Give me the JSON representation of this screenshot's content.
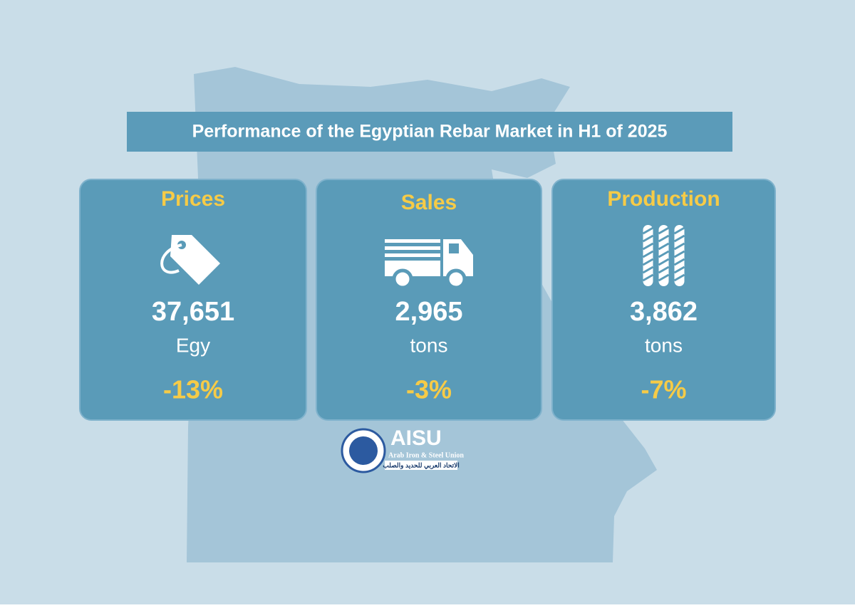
{
  "header": {
    "title": "Performance of the Egyptian Rebar Market in H1 of 2025"
  },
  "cards": [
    {
      "label": "Prices",
      "icon": "tag",
      "value": "37,651",
      "unit": "Egy",
      "change": "-13%"
    },
    {
      "label": "Sales",
      "icon": "truck",
      "value": "2,965",
      "unit": "tons",
      "change": "-3%"
    },
    {
      "label": "Production",
      "icon": "rebar",
      "value": "3,862",
      "unit": "tons",
      "change": "-7%"
    }
  ],
  "logo": {
    "name": "AISU",
    "subtitle": "Arab Iron & Steel Union",
    "arabic": "الاتحاد العربي للحديد والصلب"
  }
}
